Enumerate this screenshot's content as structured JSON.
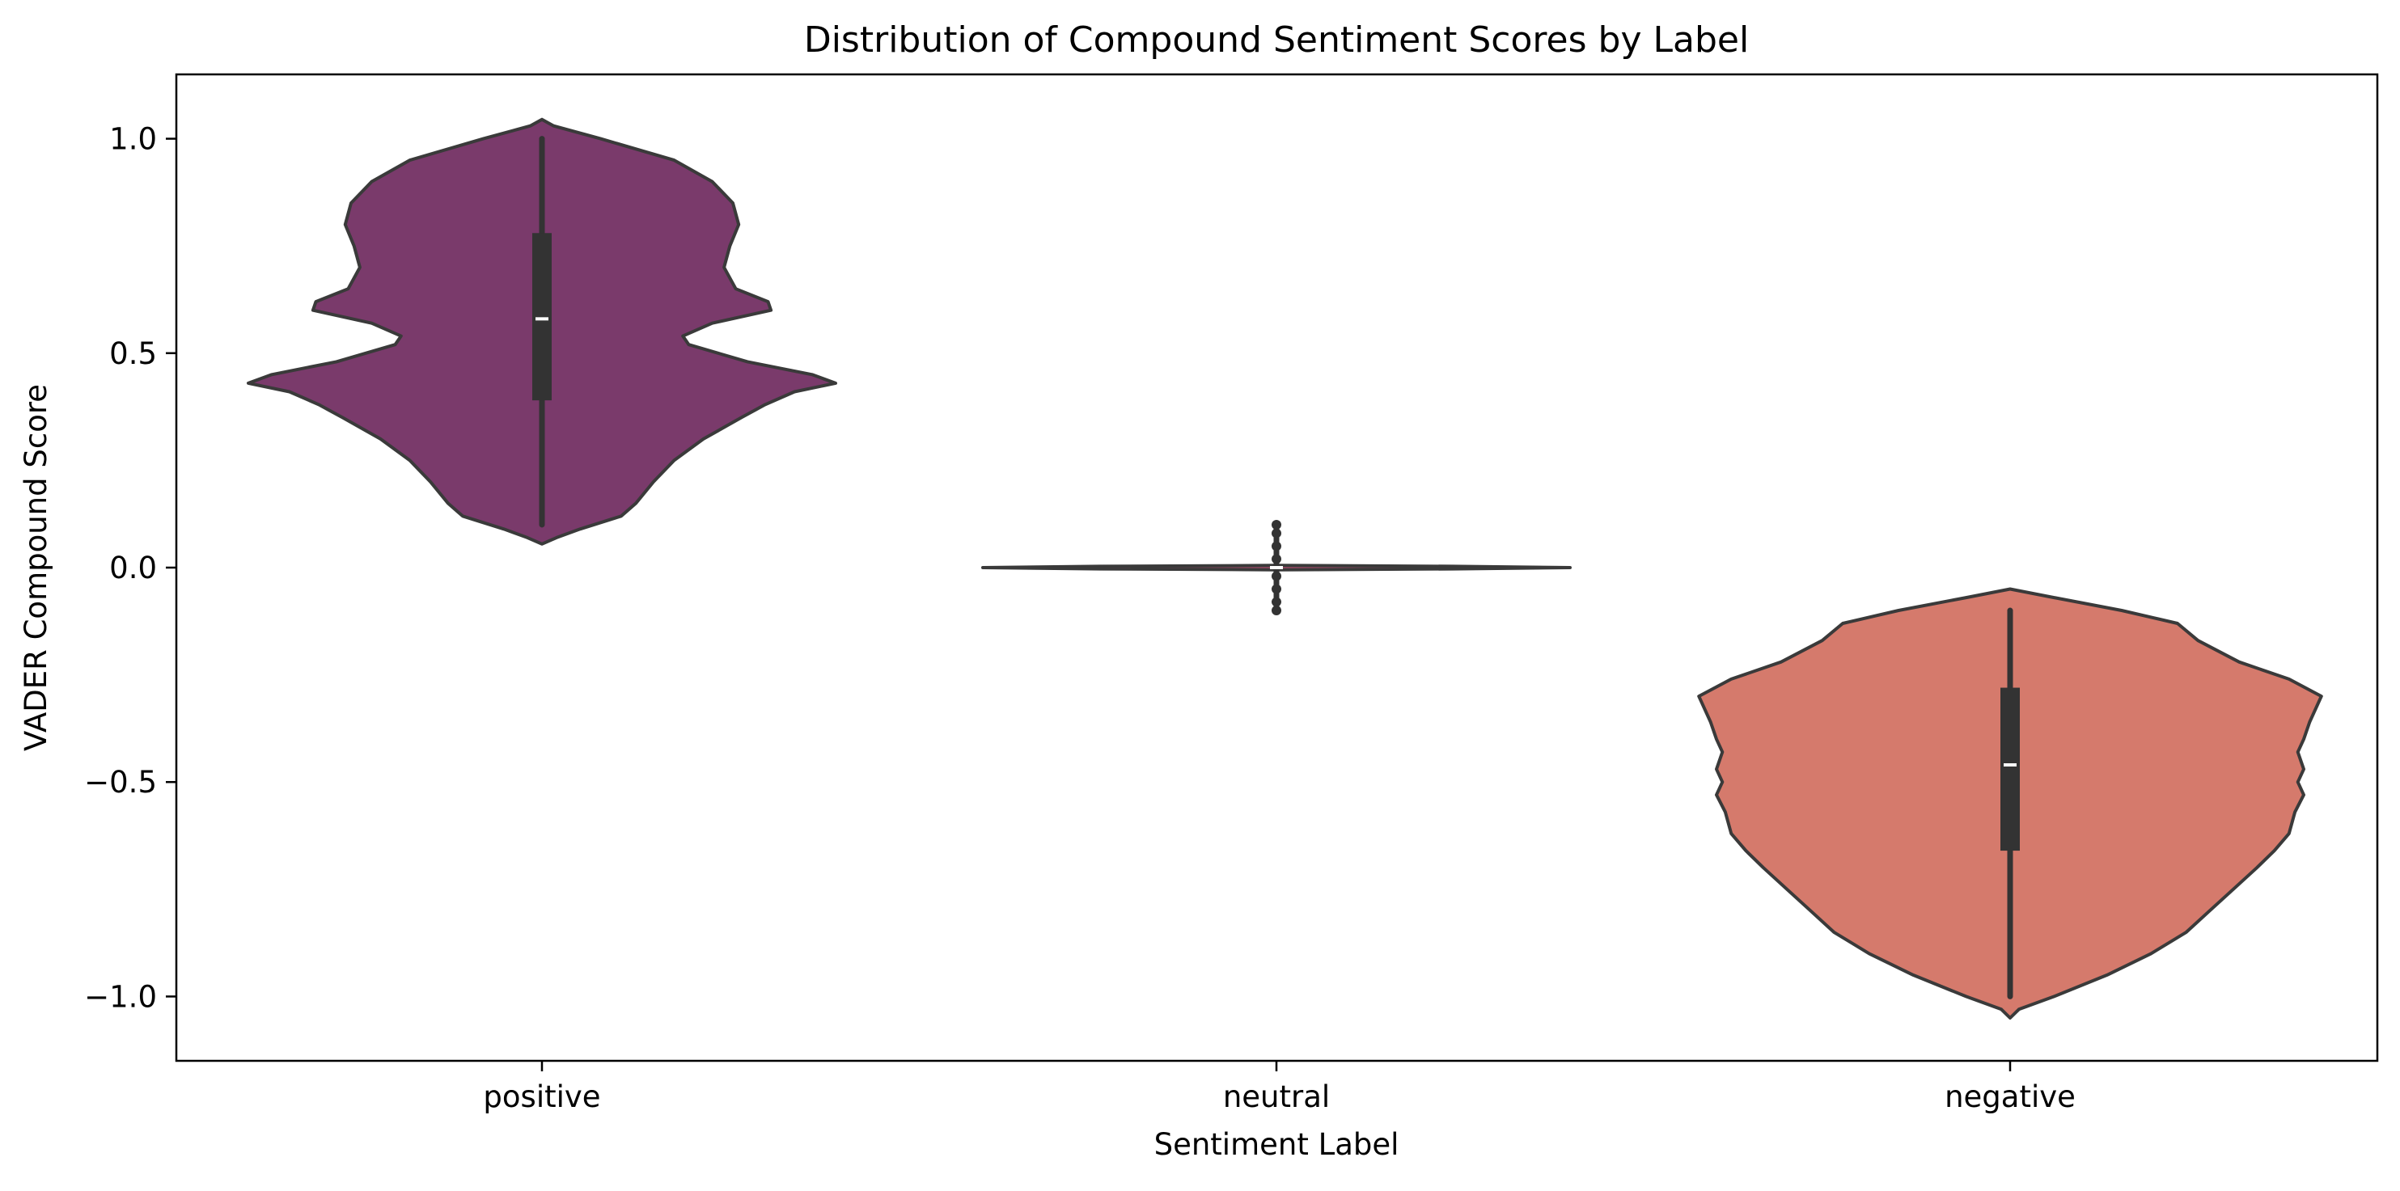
{
  "chart_data": {
    "type": "violin",
    "title": "Distribution of Compound Sentiment Scores by Label",
    "xlabel": "Sentiment Label",
    "ylabel": "VADER Compound Score",
    "categories": [
      "positive",
      "neutral",
      "negative"
    ],
    "ylim": [
      -1.15,
      1.15
    ],
    "yticks": [
      1.0,
      0.5,
      0.0,
      -0.5,
      -1.0
    ],
    "ytick_labels": [
      "1.0",
      "0.5",
      "0.0",
      "−0.5",
      "−1.0"
    ],
    "grid": false,
    "legend": "none",
    "colors": {
      "positive": "#7a3a6b",
      "neutral": "#a84a6a",
      "negative": "#d57a6c",
      "edge": "#3a3a3a",
      "box": "#333333",
      "median": "#ffffff"
    },
    "series": [
      {
        "category": "positive",
        "median": 0.58,
        "q1": 0.39,
        "q3": 0.78,
        "whisker_low": 0.1,
        "whisker_high": 1.0,
        "density": [
          [
            0.055,
            0.0
          ],
          [
            0.07,
            0.05
          ],
          [
            0.09,
            0.13
          ],
          [
            0.12,
            0.27
          ],
          [
            0.15,
            0.32
          ],
          [
            0.2,
            0.38
          ],
          [
            0.25,
            0.45
          ],
          [
            0.3,
            0.55
          ],
          [
            0.35,
            0.68
          ],
          [
            0.38,
            0.76
          ],
          [
            0.41,
            0.86
          ],
          [
            0.43,
            1.0
          ],
          [
            0.45,
            0.92
          ],
          [
            0.48,
            0.7
          ],
          [
            0.52,
            0.5
          ],
          [
            0.54,
            0.48
          ],
          [
            0.57,
            0.58
          ],
          [
            0.6,
            0.78
          ],
          [
            0.62,
            0.77
          ],
          [
            0.65,
            0.66
          ],
          [
            0.7,
            0.62
          ],
          [
            0.75,
            0.64
          ],
          [
            0.8,
            0.67
          ],
          [
            0.85,
            0.65
          ],
          [
            0.9,
            0.58
          ],
          [
            0.95,
            0.45
          ],
          [
            1.0,
            0.2
          ],
          [
            1.03,
            0.04
          ],
          [
            1.045,
            0.0
          ]
        ]
      },
      {
        "category": "neutral",
        "median": 0.0,
        "q1": -0.005,
        "q3": 0.005,
        "whisker_low": -0.1,
        "whisker_high": 0.1,
        "density": [
          [
            -0.005,
            0.0
          ],
          [
            -0.003,
            0.6
          ],
          [
            0.0,
            1.0
          ],
          [
            0.003,
            0.6
          ],
          [
            0.005,
            0.0
          ]
        ],
        "outliers": [
          -0.1,
          -0.08,
          -0.05,
          -0.02,
          0.02,
          0.05,
          0.08,
          0.1
        ]
      },
      {
        "category": "negative",
        "median": -0.46,
        "q1": -0.66,
        "q3": -0.28,
        "whisker_low": -1.0,
        "whisker_high": -0.1,
        "density": [
          [
            -1.05,
            0.0
          ],
          [
            -1.03,
            0.03
          ],
          [
            -1.0,
            0.15
          ],
          [
            -0.95,
            0.33
          ],
          [
            -0.9,
            0.48
          ],
          [
            -0.85,
            0.6
          ],
          [
            -0.8,
            0.68
          ],
          [
            -0.75,
            0.76
          ],
          [
            -0.7,
            0.84
          ],
          [
            -0.66,
            0.9
          ],
          [
            -0.62,
            0.95
          ],
          [
            -0.57,
            0.97
          ],
          [
            -0.53,
            1.0
          ],
          [
            -0.5,
            0.98
          ],
          [
            -0.47,
            1.0
          ],
          [
            -0.43,
            0.98
          ],
          [
            -0.4,
            1.0
          ],
          [
            -0.36,
            1.02
          ],
          [
            -0.3,
            1.06
          ],
          [
            -0.26,
            0.95
          ],
          [
            -0.22,
            0.78
          ],
          [
            -0.17,
            0.64
          ],
          [
            -0.13,
            0.57
          ],
          [
            -0.1,
            0.38
          ],
          [
            -0.07,
            0.15
          ],
          [
            -0.05,
            0.0
          ]
        ]
      }
    ]
  }
}
